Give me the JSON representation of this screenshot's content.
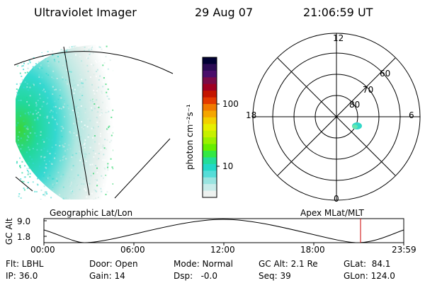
{
  "header": {
    "instrument": "Ultraviolet Imager",
    "date": "29 Aug 07",
    "time": "21:06:59 UT"
  },
  "colorbar": {
    "unit_label": "photon cm⁻²s⁻¹",
    "ticks": [
      "100",
      "10"
    ],
    "colors": [
      "#000033",
      "#2b0b55",
      "#4a0e6b",
      "#7a0b48",
      "#a00022",
      "#c41500",
      "#e33a00",
      "#f07a00",
      "#f5a600",
      "#f2d000",
      "#e6ef00",
      "#c6f000",
      "#9af000",
      "#66ee00",
      "#33e844",
      "#22dd99",
      "#22d8c8",
      "#55ddd8",
      "#99e4e0",
      "#c8ecea",
      "#eef2f0"
    ]
  },
  "polar_plot": {
    "lat_labels": [
      "60",
      "70",
      "80"
    ],
    "mlt_labels": {
      "top": "12",
      "bottom": "0",
      "left": "18",
      "right": "6"
    }
  },
  "timeline": {
    "title_left": "Geographic Lat/Lon",
    "title_right": "Apex MLat/MLT",
    "y_axis_label": "GC Alt",
    "y_ticks": [
      "9.0",
      "1.8"
    ],
    "x_ticks": [
      "00:00",
      "06:00",
      "12:00",
      "18:00",
      "23:59"
    ],
    "current_time_marker": "21:06:59",
    "marker_color": "#cc0000"
  },
  "info": {
    "flt": "Flt: LBHL",
    "door": "Door: Open",
    "mode": "Mode: Normal",
    "gcalt": "GC Alt: 2.1 Re",
    "glat": "GLat:  84.1",
    "ip": "IP: 36.0",
    "gain": "Gain: 14",
    "dsp": "Dsp:   -0.0",
    "seq": "Seq: 39",
    "glon": "GLon: 124.0"
  }
}
